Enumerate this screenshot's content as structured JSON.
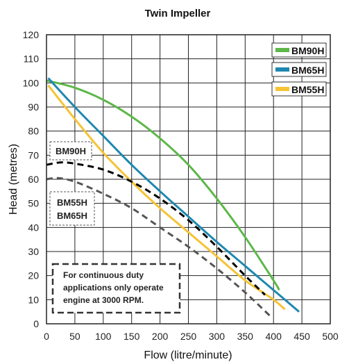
{
  "chart_data": {
    "type": "line",
    "title": "Twin Impeller",
    "xlabel": "Flow (litre/minute)",
    "ylabel": "Head (metres)",
    "xlim": [
      0,
      500
    ],
    "ylim": [
      0,
      120
    ],
    "xticks": [
      0,
      50,
      100,
      150,
      200,
      250,
      300,
      350,
      400,
      450,
      500
    ],
    "yticks": [
      0,
      10,
      20,
      30,
      40,
      50,
      60,
      70,
      80,
      90,
      100,
      110,
      120
    ],
    "grid": true,
    "legend_position": "top-right",
    "series": [
      {
        "name": "BM90H",
        "color": "#5cb848",
        "style": "solid",
        "x": [
          0,
          50,
          100,
          150,
          200,
          250,
          300,
          350,
          400,
          410
        ],
        "y": [
          101,
          98,
          93,
          86,
          77,
          66,
          52,
          36,
          18,
          14
        ]
      },
      {
        "name": "BM65H",
        "color": "#1e88b0",
        "style": "solid",
        "x": [
          3,
          50,
          100,
          150,
          200,
          250,
          300,
          350,
          400,
          445
        ],
        "y": [
          102,
          90,
          78,
          66,
          55,
          44.5,
          34,
          24,
          14,
          5
        ]
      },
      {
        "name": "BM55H",
        "color": "#f5c334",
        "style": "solid",
        "x": [
          3,
          50,
          100,
          150,
          200,
          250,
          300,
          350,
          400,
          420
        ],
        "y": [
          99,
          85,
          71,
          59,
          48,
          38,
          28,
          18,
          10,
          6
        ]
      },
      {
        "name": "BM90H",
        "color": "#000000",
        "style": "dashed",
        "x": [
          0,
          25,
          50,
          100,
          150,
          200,
          250,
          300,
          350,
          385
        ],
        "y": [
          66,
          67,
          66.5,
          64,
          59,
          52,
          43,
          32,
          20,
          12
        ]
      },
      {
        "name": "BM55H BM65H",
        "color": "#555555",
        "style": "dashed",
        "x": [
          0,
          20,
          50,
          100,
          150,
          200,
          250,
          300,
          350,
          395
        ],
        "y": [
          60,
          60.5,
          59,
          54,
          48,
          40,
          32,
          23,
          13,
          3
        ]
      }
    ],
    "legend": [
      "BM90H",
      "BM65H",
      "BM55H"
    ],
    "annotations": {
      "dashed_label_1": "BM90H",
      "dashed_label_2_line1": "BM55H",
      "dashed_label_2_line2": "BM65H",
      "note_line1": "For continuous duty",
      "note_line2": "applications only operate",
      "note_line3": "engine at 3000 RPM."
    }
  }
}
